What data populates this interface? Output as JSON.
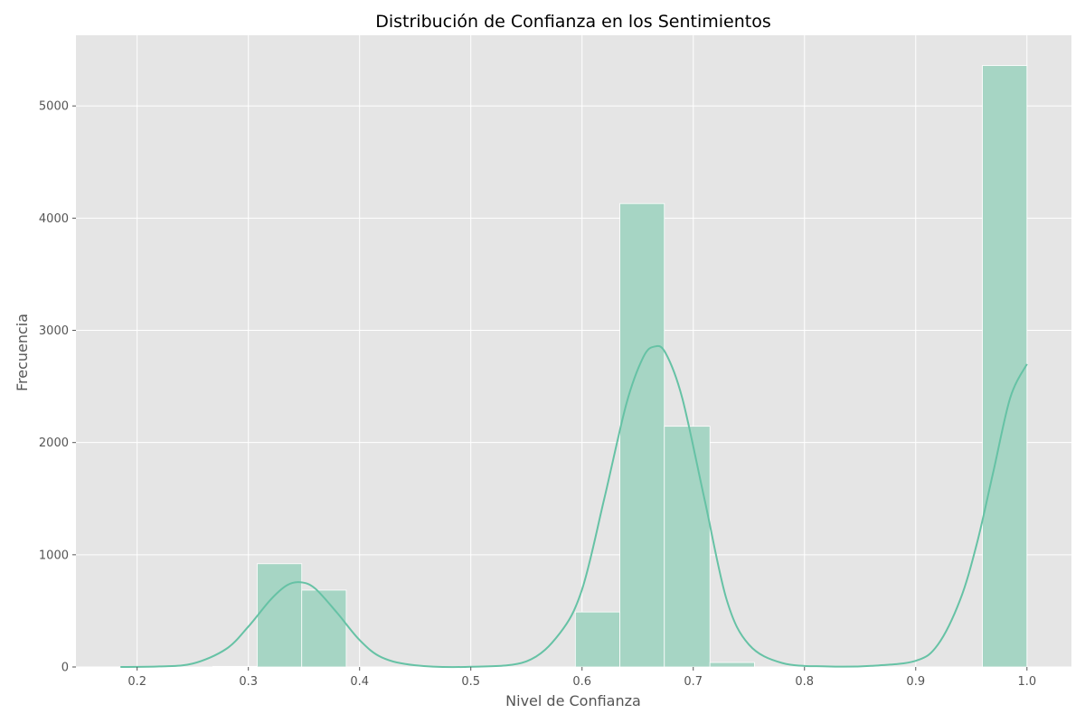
{
  "chart_data": {
    "type": "bar",
    "title": "Distribución de Confianza en los Sentimientos",
    "xlabel": "Nivel de Confianza",
    "ylabel": "Frecuencia",
    "xlim": [
      0.145,
      1.04
    ],
    "ylim": [
      0,
      5630
    ],
    "xticks": [
      0.2,
      0.3,
      0.4,
      0.5,
      0.6,
      0.7,
      0.8,
      0.9,
      1.0
    ],
    "xtick_labels": [
      "0.2",
      "0.3",
      "0.4",
      "0.5",
      "0.6",
      "0.7",
      "0.8",
      "0.9",
      "1.0"
    ],
    "yticks": [
      0,
      1000,
      2000,
      3000,
      4000,
      5000
    ],
    "ytick_labels": [
      "0",
      "1000",
      "2000",
      "3000",
      "4000",
      "5000"
    ],
    "grid": true,
    "series": [
      {
        "kind": "histogram",
        "bins": [
          {
            "x0": 0.268,
            "x1": 0.308,
            "count": 5
          },
          {
            "x0": 0.308,
            "x1": 0.348,
            "count": 920
          },
          {
            "x0": 0.348,
            "x1": 0.388,
            "count": 685
          },
          {
            "x0": 0.594,
            "x1": 0.634,
            "count": 490
          },
          {
            "x0": 0.634,
            "x1": 0.674,
            "count": 4130
          },
          {
            "x0": 0.674,
            "x1": 0.715,
            "count": 2145
          },
          {
            "x0": 0.715,
            "x1": 0.755,
            "count": 40
          },
          {
            "x0": 0.96,
            "x1": 1.0,
            "count": 5360
          }
        ]
      },
      {
        "kind": "kde",
        "x": [
          0.185,
          0.22,
          0.25,
          0.28,
          0.3,
          0.32,
          0.335,
          0.347,
          0.36,
          0.38,
          0.4,
          0.42,
          0.45,
          0.5,
          0.55,
          0.58,
          0.6,
          0.62,
          0.64,
          0.655,
          0.665,
          0.675,
          0.69,
          0.71,
          0.73,
          0.75,
          0.78,
          0.82,
          0.86,
          0.9,
          0.92,
          0.94,
          0.955,
          0.97,
          0.985,
          1.0
        ],
        "values": [
          0,
          5,
          30,
          160,
          360,
          600,
          730,
          755,
          700,
          480,
          240,
          85,
          15,
          2,
          50,
          300,
          690,
          1500,
          2350,
          2760,
          2855,
          2800,
          2400,
          1500,
          600,
          200,
          35,
          5,
          10,
          55,
          200,
          600,
          1100,
          1750,
          2400,
          2700
        ]
      }
    ],
    "colors": {
      "plot_background": "#e5e5e5",
      "grid": "#ffffff",
      "bar_fill": "#a6d5c4",
      "bar_edge": "#ffffff",
      "kde_line": "#66c2a5",
      "tick_text": "#555555"
    }
  }
}
